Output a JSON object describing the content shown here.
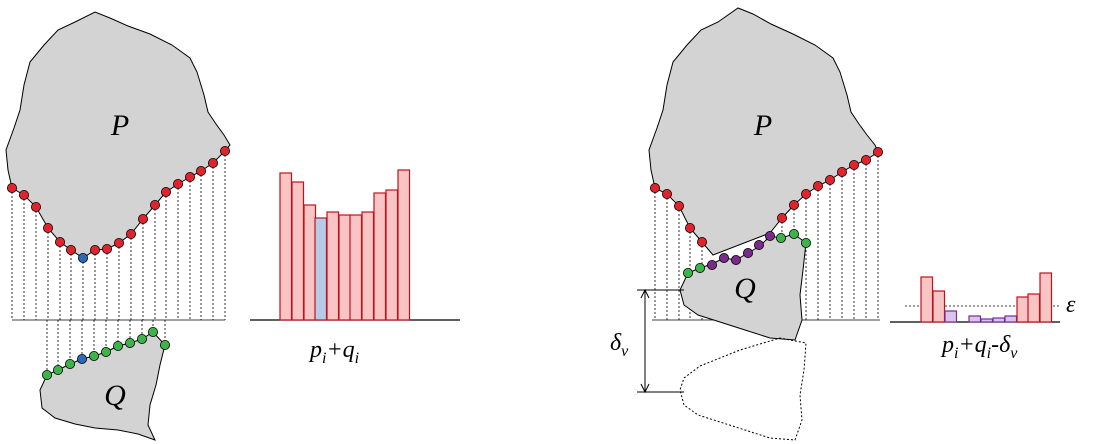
{
  "left": {
    "p_label": "P",
    "q_label": "Q",
    "bar_label": [
      "p",
      "i",
      "+",
      "q",
      "i"
    ]
  },
  "right": {
    "p_label": "P",
    "q_label": "Q",
    "delta_label": [
      "δ",
      "v"
    ],
    "bar_label": [
      "p",
      "i",
      "+",
      "q",
      "i",
      "-δ",
      "v"
    ],
    "epsilon_label": "ε"
  }
}
